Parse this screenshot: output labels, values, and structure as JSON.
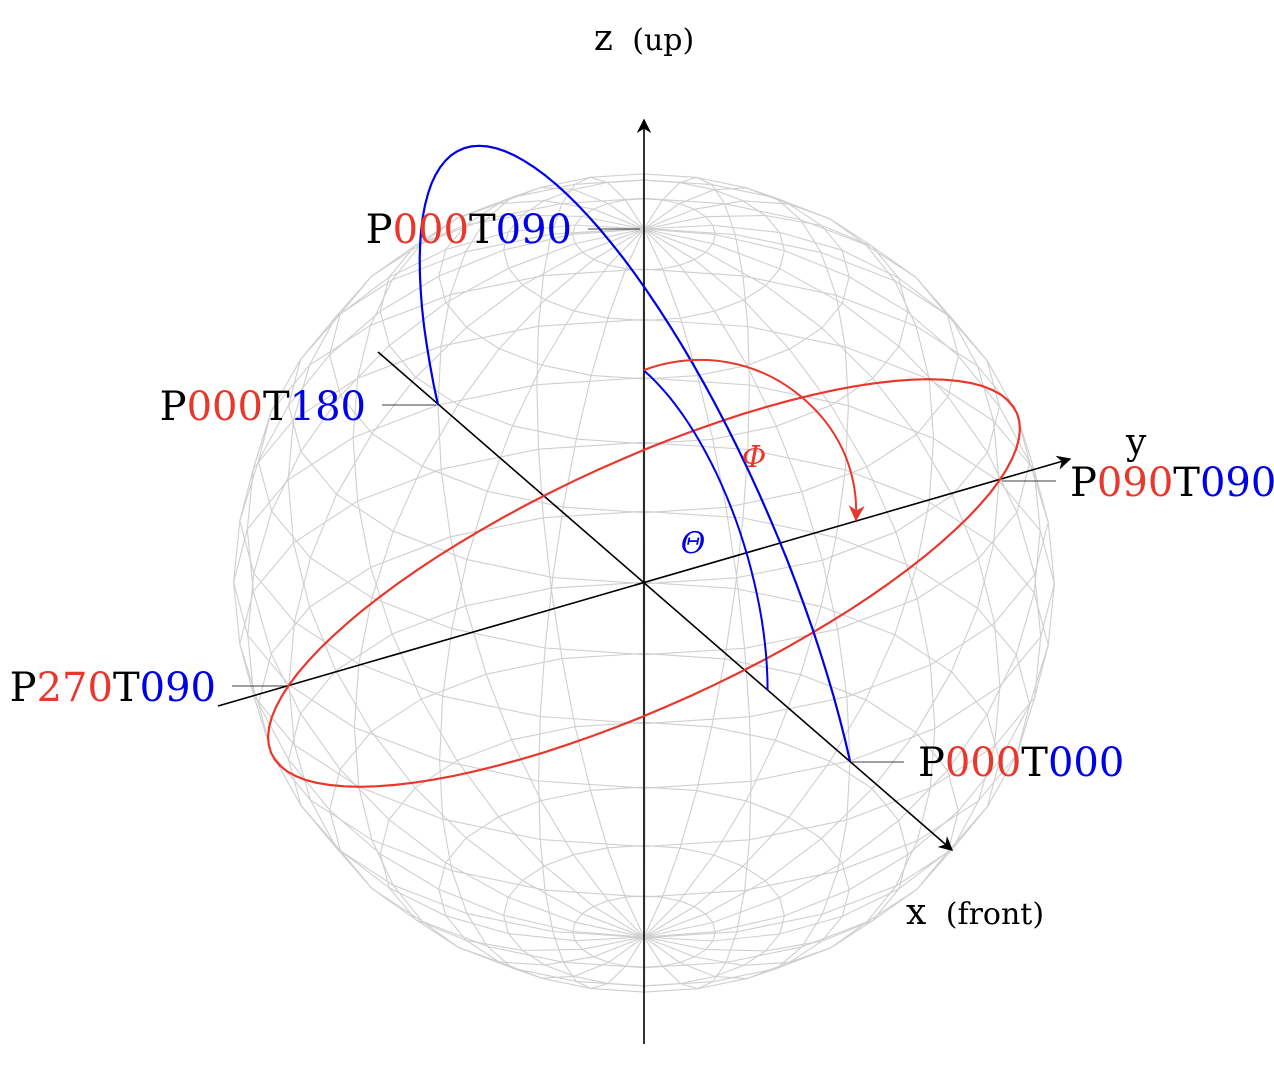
{
  "colors": {
    "phi": "#e8372c",
    "theta": "#0000e6",
    "axis": "#000000",
    "wireframe": "#cfcfcf"
  },
  "axes": {
    "z": {
      "label": "z",
      "sub": "(up)"
    },
    "x": {
      "label": "x",
      "sub": "(front)"
    },
    "y": {
      "label": "y"
    }
  },
  "angles": {
    "phi": "Φ",
    "theta": "Θ"
  },
  "points": [
    {
      "id": "p000t090",
      "p_prefix": "P",
      "p_value": "000",
      "t_prefix": "T",
      "t_value": "090"
    },
    {
      "id": "p000t180",
      "p_prefix": "P",
      "p_value": "000",
      "t_prefix": "T",
      "t_value": "180"
    },
    {
      "id": "p090t090",
      "p_prefix": "P",
      "p_value": "090",
      "t_prefix": "T",
      "t_value": "090"
    },
    {
      "id": "p270t090",
      "p_prefix": "P",
      "p_value": "270",
      "t_prefix": "T",
      "t_value": "090"
    },
    {
      "id": "p000t000",
      "p_prefix": "P",
      "p_value": "000",
      "t_prefix": "T",
      "t_value": "000"
    }
  ]
}
